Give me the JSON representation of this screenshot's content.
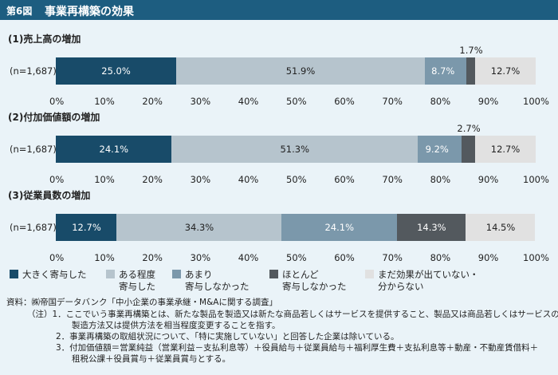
{
  "figure": {
    "number": "第6図",
    "title": "事業再構築の効果"
  },
  "colors": {
    "big": "#184b69",
    "some": "#b6c4cd",
    "little": "#7b98ab",
    "hardly": "#53595e",
    "notyet": "#e1e1e1",
    "title_bar": "#1d5d80",
    "background": "#eaf3f8"
  },
  "chart_data": [
    {
      "type": "bar",
      "orientation": "horizontal-stacked",
      "title": "(1)売上高の増加",
      "categories": [
        "(n=1,687)"
      ],
      "series": [
        {
          "name": "大きく寄与した",
          "values": [
            25.0
          ]
        },
        {
          "name": "ある程度寄与した",
          "values": [
            51.9
          ]
        },
        {
          "name": "あまり寄与しなかった",
          "values": [
            8.7
          ]
        },
        {
          "name": "ほとんど寄与しなかった",
          "values": [
            1.7
          ]
        },
        {
          "name": "まだ効果が出ていない・分からない",
          "values": [
            12.7
          ]
        }
      ],
      "data_labels": [
        "25.0%",
        "51.9%",
        "8.7%",
        "1.7%",
        "12.7%"
      ],
      "xlim": [
        0,
        100
      ],
      "xticks": [
        "0%",
        "10%",
        "20%",
        "30%",
        "40%",
        "50%",
        "60%",
        "70%",
        "80%",
        "90%",
        "100%"
      ]
    },
    {
      "type": "bar",
      "orientation": "horizontal-stacked",
      "title": "(2)付加価値額の増加",
      "categories": [
        "(n=1,687)"
      ],
      "series": [
        {
          "name": "大きく寄与した",
          "values": [
            24.1
          ]
        },
        {
          "name": "ある程度寄与した",
          "values": [
            51.3
          ]
        },
        {
          "name": "あまり寄与しなかった",
          "values": [
            9.2
          ]
        },
        {
          "name": "ほとんど寄与しなかった",
          "values": [
            2.7
          ]
        },
        {
          "name": "まだ効果が出ていない・分からない",
          "values": [
            12.7
          ]
        }
      ],
      "data_labels": [
        "24.1%",
        "51.3%",
        "9.2%",
        "2.7%",
        "12.7%"
      ],
      "xlim": [
        0,
        100
      ],
      "xticks": [
        "0%",
        "10%",
        "20%",
        "30%",
        "40%",
        "50%",
        "60%",
        "70%",
        "80%",
        "90%",
        "100%"
      ]
    },
    {
      "type": "bar",
      "orientation": "horizontal-stacked",
      "title": "(3)従業員数の増加",
      "categories": [
        "(n=1,687)"
      ],
      "series": [
        {
          "name": "大きく寄与した",
          "values": [
            12.7
          ]
        },
        {
          "name": "ある程度寄与した",
          "values": [
            34.3
          ]
        },
        {
          "name": "あまり寄与しなかった",
          "values": [
            24.1
          ]
        },
        {
          "name": "ほとんど寄与しなかった",
          "values": [
            14.3
          ]
        },
        {
          "name": "まだ効果が出ていない・分からない",
          "values": [
            14.5
          ]
        }
      ],
      "data_labels": [
        "12.7%",
        "34.3%",
        "24.1%",
        "14.3%",
        "14.5%"
      ],
      "xlim": [
        0,
        100
      ],
      "xticks": [
        "0%",
        "10%",
        "20%",
        "30%",
        "40%",
        "50%",
        "60%",
        "70%",
        "80%",
        "90%",
        "100%"
      ]
    }
  ],
  "legend": [
    {
      "key": "big",
      "lines": [
        "大きく寄与した"
      ]
    },
    {
      "key": "some",
      "lines": [
        "ある程度",
        "寄与した"
      ]
    },
    {
      "key": "little",
      "lines": [
        "あまり",
        "寄与しなかった"
      ]
    },
    {
      "key": "hardly",
      "lines": [
        "ほとんど",
        "寄与しなかった"
      ]
    },
    {
      "key": "notyet",
      "lines": [
        "まだ効果が出ていない・",
        "分からない"
      ]
    }
  ],
  "notes": {
    "source": "資料：㈱帝国データバンク「中小企業の事業承継・M&Aに関する調査」",
    "note1a": "（注）1．ここでいう事業再構築とは、新たな製品を製造又は新たな商品若しくはサービスを提供すること、製品又は商品若しくはサービスの",
    "note1b": "製造方法又は提供方法を相当程度変更することを指す。",
    "note2": "2．事業再構築の取組状況について、「特に実施していない」と回答した企業は除いている。",
    "note3a": "3．付加価値額＝営業純益（営業利益－支払利息等）＋役員給与＋従業員給与＋福利厚生費＋支払利息等＋動産・不動産賃借料＋",
    "note3b": "租税公課＋役員賞与＋従業員賞与とする。"
  }
}
